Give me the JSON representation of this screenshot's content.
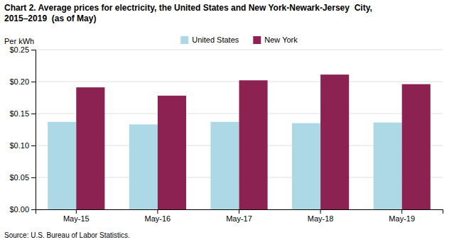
{
  "chart_data": {
    "type": "bar",
    "title": "Chart 2. Average prices for electricity, the United States and New York-Newark-Jersey  City,",
    "subtitle": "2015–2019  (as of May)",
    "ylabel": "Per kWh",
    "source": "Source: U.S. Bureau of Labor Statistics.",
    "categories": [
      "May-15",
      "May-16",
      "May-17",
      "May-18",
      "May-19"
    ],
    "series": [
      {
        "name": "United States",
        "color": "#ADD8E6",
        "values": [
          0.137,
          0.133,
          0.137,
          0.135,
          0.136
        ]
      },
      {
        "name": "New York",
        "color": "#8B2252",
        "values": [
          0.191,
          0.178,
          0.202,
          0.211,
          0.196
        ]
      }
    ],
    "ylim": [
      0.0,
      0.25
    ],
    "yticks": [
      {
        "value": 0.0,
        "label": "$0.00"
      },
      {
        "value": 0.05,
        "label": "$0.05"
      },
      {
        "value": 0.1,
        "label": "$0.10"
      },
      {
        "value": 0.15,
        "label": "$0.15"
      },
      {
        "value": 0.2,
        "label": "$0.20"
      },
      {
        "value": 0.25,
        "label": "$0.25"
      }
    ],
    "grid": true,
    "legend": "top"
  }
}
